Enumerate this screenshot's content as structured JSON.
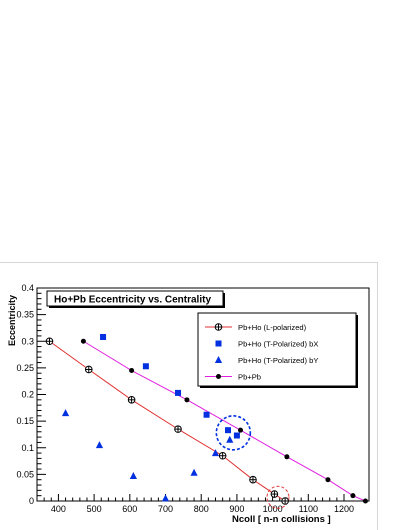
{
  "chart_data": {
    "type": "scatter",
    "title": "Ho+Pb  Eccentricity vs. Centrality",
    "xlabel": "Ncoll  [ n-n collisions ]",
    "ylabel": "Eccentricity",
    "xlim": [
      340,
      1270
    ],
    "ylim": [
      0,
      0.4
    ],
    "x_ticks": [
      400,
      500,
      600,
      700,
      800,
      900,
      1000,
      1100,
      1200
    ],
    "y_ticks": [
      0,
      0.05,
      0.1,
      0.15,
      0.2,
      0.25,
      0.3,
      0.35,
      0.4
    ],
    "grid": false,
    "legend_position": "top-right",
    "series": [
      {
        "name": "Pb+Ho (L-polarized)",
        "marker": "open-circle-cross",
        "color": "#000000",
        "line_color": "#e03030",
        "x": [
          375,
          485,
          605,
          735,
          860,
          945,
          1005,
          1035
        ],
        "y": [
          0.3,
          0.247,
          0.19,
          0.135,
          0.085,
          0.04,
          0.013,
          0.0
        ]
      },
      {
        "name": "Pb+Ho (T-Polarized) bX",
        "marker": "square",
        "color": "#0030e0",
        "x": [
          525,
          645,
          735,
          815,
          875,
          900
        ],
        "y": [
          0.308,
          0.253,
          0.203,
          0.162,
          0.133,
          0.123
        ]
      },
      {
        "name": "Pb+Ho (T-Polarized) bY",
        "marker": "triangle",
        "color": "#0030e0",
        "x": [
          420,
          515,
          610,
          700,
          780,
          840,
          880
        ],
        "y": [
          0.165,
          0.105,
          0.047,
          0.005,
          0.053,
          0.09,
          0.115
        ]
      },
      {
        "name": "Pb+Pb",
        "marker": "filled-circle",
        "color": "#000000",
        "line_color": "#e020e0",
        "x": [
          470,
          605,
          760,
          910,
          1040,
          1155,
          1225,
          1260
        ],
        "y": [
          0.3,
          0.245,
          0.19,
          0.133,
          0.083,
          0.04,
          0.01,
          0.0
        ]
      }
    ],
    "annotations": [
      {
        "shape": "dashed-circle",
        "color": "#0030e0",
        "x": 890,
        "y": 0.128
      },
      {
        "shape": "dashed-circle",
        "color": "#e03030",
        "x": 1015,
        "y": 0.007
      }
    ]
  }
}
